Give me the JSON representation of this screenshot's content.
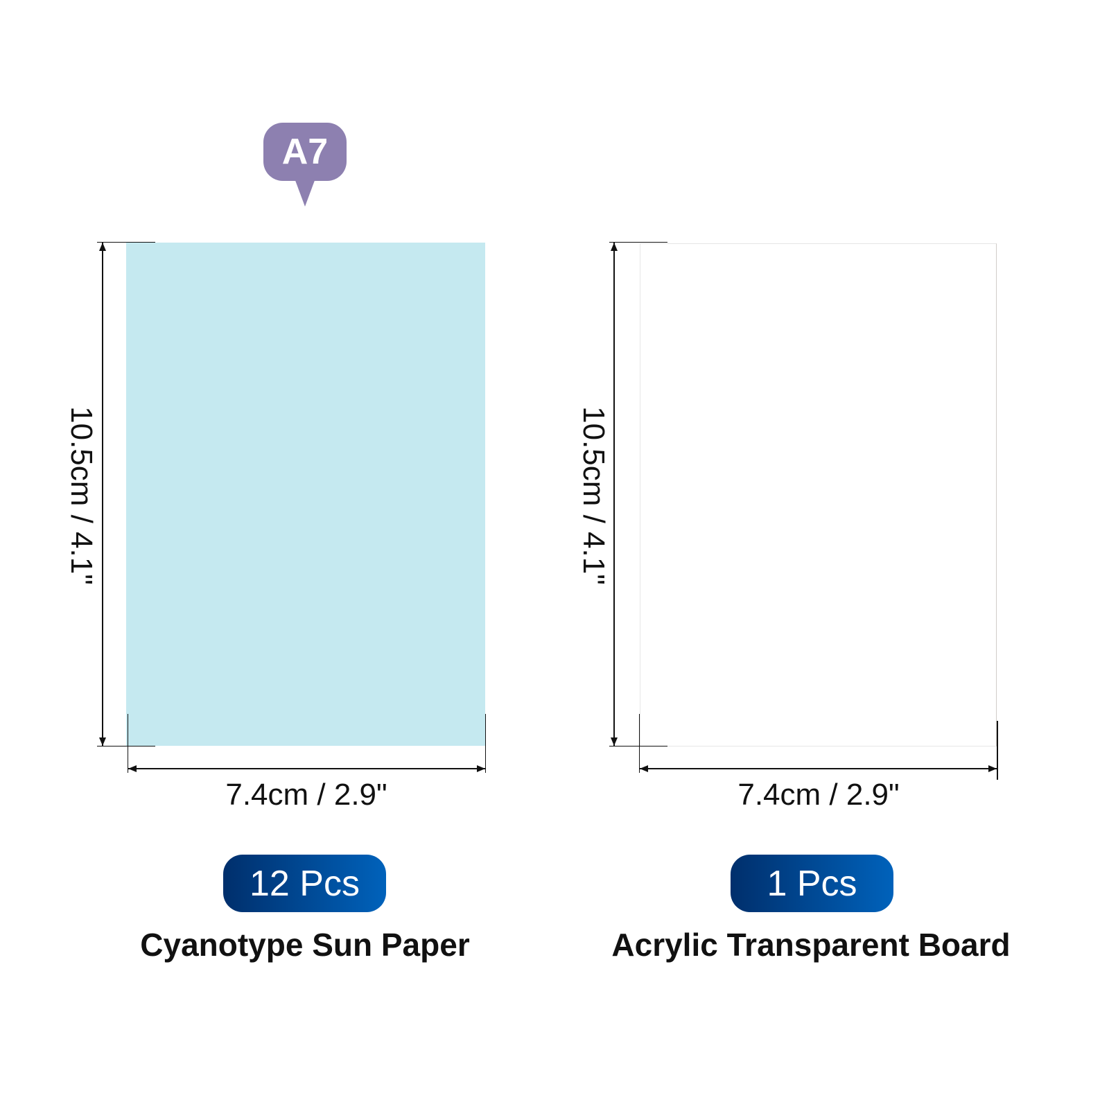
{
  "size_tag": {
    "label": "A7",
    "color": "#8d80b0"
  },
  "items": [
    {
      "name": "Cyanotype Sun Paper",
      "quantity": "12 Pcs",
      "height_label": "10.5cm / 4.1\"",
      "width_label": "7.4cm / 2.9\"",
      "color": "#c5e9f0"
    },
    {
      "name": "Acrylic Transparent Board",
      "quantity": "1 Pcs",
      "height_label": "10.5cm / 4.1\"",
      "width_label": "7.4cm / 2.9\"",
      "color": "#ffffff"
    }
  ],
  "badge_gradient": [
    "#002f6c",
    "#0062bb"
  ]
}
